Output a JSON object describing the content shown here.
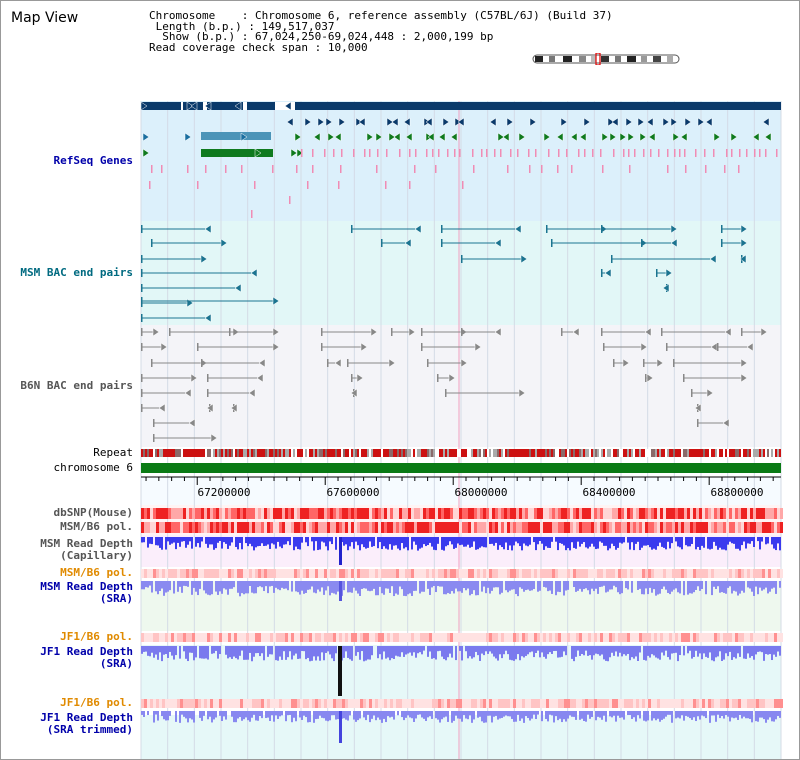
{
  "app": {
    "title": "Map View"
  },
  "header": {
    "chromosome_key": "Chromosome",
    "chromosome_value": "Chromosome 6, reference assembly (C57BL/6J) (Build 37)",
    "length_key": "Length (b.p.)",
    "length_value": "149,517,037",
    "show_key": "Show (b.p.)",
    "show_value": "67,024,250-69,024,448 : 2,000,199 bp",
    "coverage_key": "Read coverage check span",
    "coverage_value": "10,000"
  },
  "tracks": {
    "refseq": "RefSeq Genes",
    "msm_bac": "MSM BAC end pairs",
    "b6n_bac": "B6N BAC end pairs",
    "repeat": "Repeat",
    "chromosome": "chromosome 6",
    "dbsnp": "dbSNP(Mouse)",
    "msm_b6_pol_1": "MSM/B6 pol.",
    "msm_depth_cap_1": "MSM Read Depth",
    "msm_depth_cap_2": "(Capillary)",
    "msm_b6_pol_2": "MSM/B6 pol.",
    "msm_depth_sra_1": "MSM Read Depth",
    "msm_depth_sra_2": "(SRA)",
    "jf1_b6_pol_1": "JF1/B6 pol.",
    "jf1_depth_sra_1": "JF1 Read Depth",
    "jf1_depth_sra_2": "(SRA)",
    "jf1_b6_pol_2": "JF1/B6 pol.",
    "jf1_depth_trim_1": "JF1 Read Depth",
    "jf1_depth_trim_2": "(SRA trimmed)"
  },
  "axis": {
    "ticks": [
      "67200000",
      "67600000",
      "68000000",
      "68400000",
      "68800000"
    ],
    "tick_values": [
      67200000,
      67600000,
      68000000,
      68400000,
      68800000
    ],
    "range": [
      67024250,
      69024448
    ]
  },
  "colors": {
    "refseq_bg": "#dcf0fb",
    "msm_bg": "#e2f7f7",
    "b6n_bg": "#f4f4f8",
    "gene_dark": "#0a3a6b",
    "gene_mid": "#1a6fa0",
    "gene_light": "#4b94b8",
    "gene_green": "#0f7a1e",
    "pink": "#f08cb4",
    "bac_teal": "#1b7490",
    "bac_grey": "#888888",
    "chromosome_bar": "#0a7a14",
    "label_blue": "#0000aa",
    "label_orange": "#e08a00",
    "label_teal": "#006a80"
  }
}
